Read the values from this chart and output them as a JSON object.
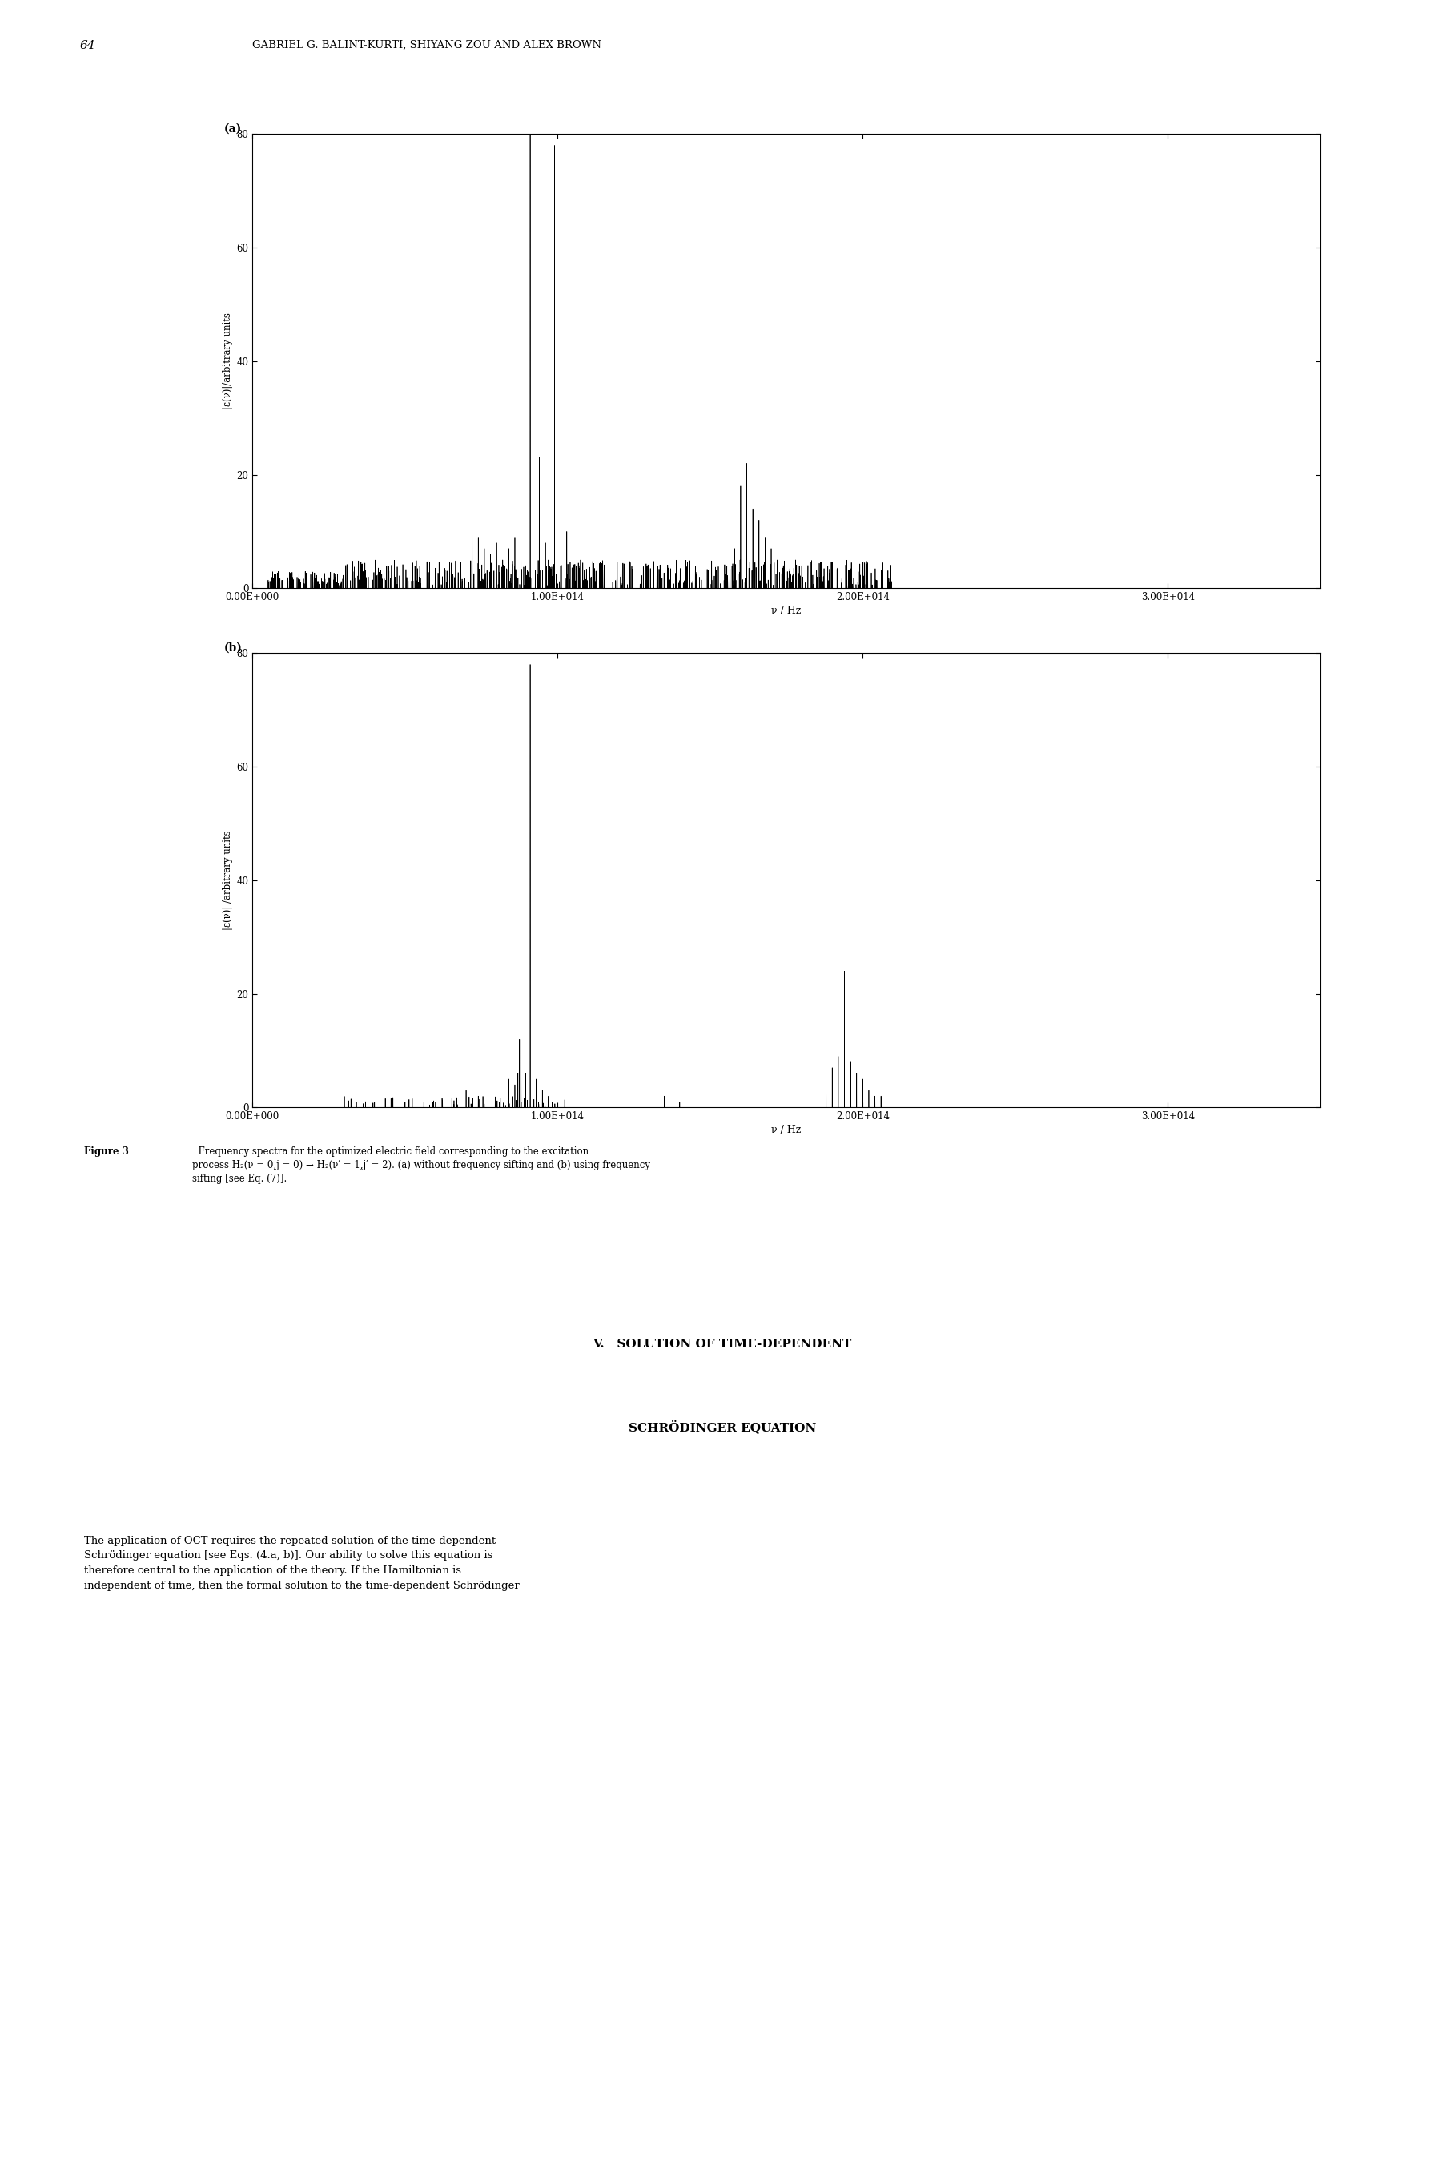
{
  "header_num": "64",
  "header_author": "GABRIEL G. BALINT-KURTI, SHIYANG ZOU AND ALEX BROWN",
  "label_a": "(a)",
  "label_b": "(b)",
  "xlabel": "ν / Hz",
  "ylabel_a": "|ε(ν)|/arbitrary units",
  "ylabel_b": "|ε(ν)| /arbitrary units",
  "xlim": [
    0.0,
    350000000000000.0
  ],
  "ylim": [
    0,
    80
  ],
  "xtick_vals": [
    0.0,
    100000000000000.0,
    200000000000000.0,
    300000000000000.0
  ],
  "xticklabels": [
    "0.00E+000",
    "1.00E+014",
    "2.00E+014",
    "3.00E+014"
  ],
  "ytick_vals": [
    0,
    20,
    40,
    60,
    80
  ],
  "yticklabels": [
    "0",
    "20",
    "40",
    "60",
    "80"
  ],
  "caption_bold": "Figure 3",
  "caption_rest": "  Frequency spectra for the optimized electric field corresponding to the excitation\nprocess H₂(ν = 0,j = 0) → H₂(ν′ = 1,j′ = 2). (a) without frequency sifting and (b) using frequency\nsifting [see Eq. (7)].",
  "section_title_1": "V.   SOLUTION OF TIME-DEPENDENT",
  "section_title_2": "SCHRÖDINGER EQUATION",
  "body_lines": [
    "The application of OCT requires the repeated solution of the time-dependent",
    "Schrödinger equation [see Eqs. (4.a, b)]. Our ability to solve this equation is",
    "therefore central to the application of the theory. If the Hamiltonian is",
    "independent of time, then the formal solution to the time-dependent Schrödinger"
  ],
  "bg": "#ffffff",
  "lc": "#000000",
  "dpi": 100
}
